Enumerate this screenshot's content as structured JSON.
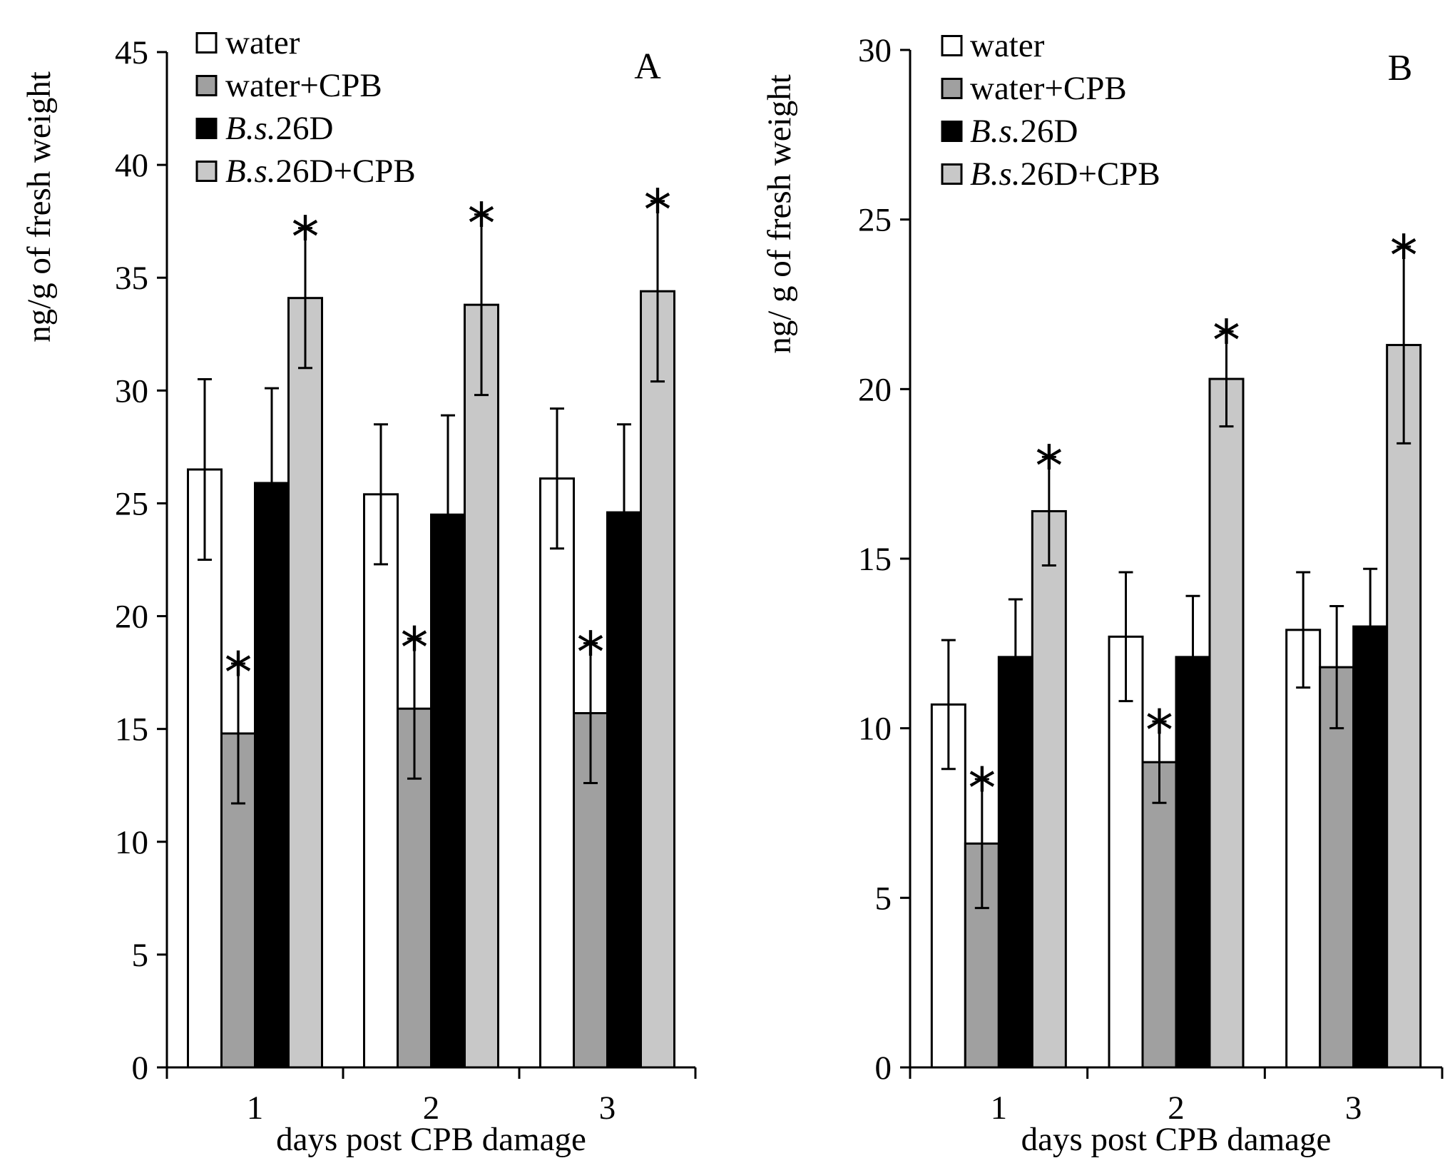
{
  "chart_data": [
    {
      "type": "bar",
      "panel_label": "A",
      "categories": [
        "1",
        "2",
        "3"
      ],
      "series": [
        {
          "name": "water",
          "values": [
            26.5,
            25.4,
            26.1
          ],
          "errors": [
            4.0,
            3.1,
            3.1
          ],
          "significant": [
            false,
            false,
            false
          ]
        },
        {
          "name": "water+CPB",
          "values": [
            14.8,
            15.9,
            15.7
          ],
          "errors": [
            3.1,
            3.1,
            3.1
          ],
          "significant": [
            true,
            true,
            true
          ]
        },
        {
          "name": "B.s.26D",
          "values": [
            25.9,
            24.5,
            24.6
          ],
          "errors": [
            4.2,
            4.4,
            3.9
          ],
          "significant": [
            false,
            false,
            false
          ]
        },
        {
          "name": "B.s.26D+CPB",
          "values": [
            34.1,
            33.8,
            34.4
          ],
          "errors": [
            3.1,
            4.0,
            4.0
          ],
          "significant": [
            true,
            true,
            true
          ]
        }
      ],
      "series_colors": [
        "#ffffff",
        "#a0a0a0",
        "#000000",
        "#c8c8c8"
      ],
      "xlabel": "days post CPB damage",
      "ylabel": "ng/g of fresh weight",
      "ylim": [
        0,
        45
      ],
      "yticks": [
        0,
        5,
        10,
        15,
        20,
        25,
        30,
        35,
        40,
        45
      ],
      "significance_marker": "*",
      "legend": {
        "position": "top-left",
        "items": [
          {
            "prefix": "",
            "italic": "",
            "suffix": "water"
          },
          {
            "prefix": "",
            "italic": "",
            "suffix": "water+CPB"
          },
          {
            "prefix": "",
            "italic": "B.s.",
            "suffix": "26D"
          },
          {
            "prefix": "",
            "italic": "B.s.",
            "suffix": "26D+CPB"
          }
        ]
      }
    },
    {
      "type": "bar",
      "panel_label": "B",
      "categories": [
        "1",
        "2",
        "3"
      ],
      "series": [
        {
          "name": "water",
          "values": [
            10.7,
            12.7,
            12.9
          ],
          "errors": [
            1.9,
            1.9,
            1.7
          ],
          "significant": [
            false,
            false,
            false
          ]
        },
        {
          "name": "water+CPB",
          "values": [
            6.6,
            9.0,
            11.8
          ],
          "errors": [
            1.9,
            1.2,
            1.8
          ],
          "significant": [
            true,
            true,
            false
          ]
        },
        {
          "name": "B.s.26D",
          "values": [
            12.1,
            12.1,
            13.0
          ],
          "errors": [
            1.7,
            1.8,
            1.7
          ],
          "significant": [
            false,
            false,
            false
          ]
        },
        {
          "name": "B.s.26D+CPB",
          "values": [
            16.4,
            20.3,
            21.3
          ],
          "errors": [
            1.6,
            1.4,
            2.9
          ],
          "significant": [
            true,
            true,
            true
          ]
        }
      ],
      "series_colors": [
        "#ffffff",
        "#a0a0a0",
        "#000000",
        "#c8c8c8"
      ],
      "xlabel": "days post CPB damage",
      "ylabel": "ng/ g of fresh weight",
      "ylim": [
        0,
        30
      ],
      "yticks": [
        0,
        5,
        10,
        15,
        20,
        25,
        30
      ],
      "significance_marker": "*",
      "legend": {
        "position": "top-left",
        "items": [
          {
            "prefix": "",
            "italic": "",
            "suffix": "water"
          },
          {
            "prefix": "",
            "italic": "",
            "suffix": "water+CPB"
          },
          {
            "prefix": "",
            "italic": "B.s.",
            "suffix": "26D"
          },
          {
            "prefix": "",
            "italic": "B.s.",
            "suffix": "26D+CPB"
          }
        ]
      }
    }
  ]
}
